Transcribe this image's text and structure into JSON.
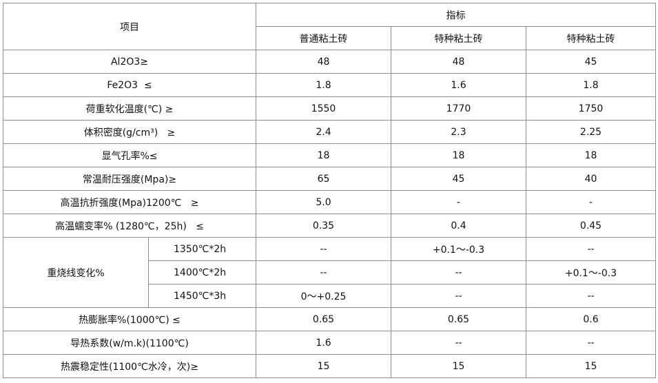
{
  "table": {
    "header": {
      "item": "项目",
      "group": "指标",
      "columns": [
        "普通粘土砖",
        "特种粘土砖",
        "特种粘土砖"
      ]
    },
    "rows": [
      {
        "label": "Al2O3≥",
        "values": [
          "48",
          "48",
          "45"
        ]
      },
      {
        "label": "Fe2O3  ≤",
        "values": [
          "1.8",
          "1.6",
          "1.8"
        ]
      },
      {
        "label": "荷重软化温度(℃) ≥",
        "values": [
          "1550",
          "1770",
          "1750"
        ]
      },
      {
        "label": "体积密度(g/cm³)   ≥",
        "values": [
          "2.4",
          "2.3",
          "2.25"
        ]
      },
      {
        "label": "显气孔率%≤",
        "values": [
          "18",
          "18",
          "18"
        ]
      },
      {
        "label": "常温耐压强度(Mpa)≥",
        "values": [
          "65",
          "45",
          "40"
        ]
      },
      {
        "label": "高温抗折强度(Mpa)1200℃   ≥",
        "values": [
          "5.0",
          "-",
          "-"
        ]
      },
      {
        "label": "高温蠕变率% (1280℃，25h)   ≤",
        "values": [
          "0.35",
          "0.4",
          "0.45"
        ]
      },
      {
        "label": "重烧线变化%",
        "sub": [
          {
            "condition": "1350℃*2h",
            "values": [
              "--",
              "+0.1～-0.3",
              "--"
            ]
          },
          {
            "condition": "1400℃*2h",
            "values": [
              "--",
              "--",
              "+0.1～-0.3"
            ]
          },
          {
            "condition": "1450℃*3h",
            "values": [
              "0～+0.25",
              "--",
              "--"
            ]
          }
        ]
      },
      {
        "label": "热膨胀率%(1000℃) ≤",
        "values": [
          "0.65",
          "0.65",
          "0.6"
        ]
      },
      {
        "label": "导热系数(w/m.k)(1100℃)",
        "values": [
          "1.6",
          "--",
          "--"
        ]
      },
      {
        "label": "热震稳定性(1100℃水冷，次)≥",
        "values": [
          "15",
          "15",
          "15"
        ]
      }
    ]
  }
}
